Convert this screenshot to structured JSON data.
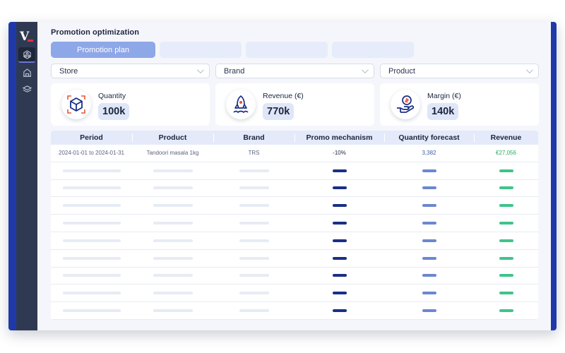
{
  "app": {
    "logo": "V"
  },
  "sidebar": {
    "items": [
      {
        "icon": "hexagon-network-icon",
        "active": true
      },
      {
        "icon": "building-icon",
        "active": false
      },
      {
        "icon": "layers-icon",
        "active": false
      }
    ]
  },
  "page": {
    "title": "Promotion optimization"
  },
  "tabs": [
    {
      "label": "Promotion plan",
      "active": true
    },
    {
      "label": "",
      "active": false
    },
    {
      "label": "",
      "active": false
    },
    {
      "label": "",
      "active": false
    }
  ],
  "filters": [
    {
      "label": "Store"
    },
    {
      "label": "Brand"
    },
    {
      "label": "Product"
    }
  ],
  "kpis": [
    {
      "label": "Quantity",
      "value": "100k",
      "icon": "cube-icon"
    },
    {
      "label": "Revenue (€)",
      "value": "770k",
      "icon": "rocket-icon"
    },
    {
      "label": "Margin (€)",
      "value": "140k",
      "icon": "coin-hand-icon"
    }
  ],
  "table": {
    "columns": [
      "Period",
      "Product",
      "Brand",
      "Promo mechanism",
      "Quantity forecast",
      "Revenue"
    ],
    "first_row": [
      "2024-01-01 to 2024-01-31",
      "Tandoori masala 1kg",
      "TRS",
      "-10%",
      "3,382",
      "€27,056"
    ],
    "placeholder_rows": 9
  },
  "colors": {
    "accent": "#1f3aa8",
    "sidebar": "#2f3a52",
    "tab_active": "#8ea7e8",
    "revenue_green": "#2aa864"
  }
}
